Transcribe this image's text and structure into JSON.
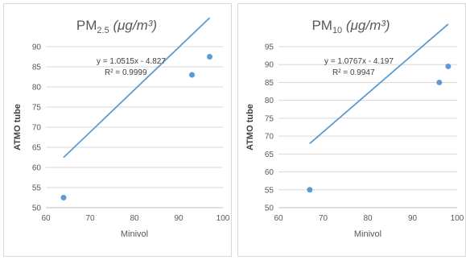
{
  "chart_data": [
    {
      "type": "scatter",
      "title": {
        "main": "PM",
        "sub": "2.5",
        "unit": " (μg/m³)"
      },
      "xlabel": "Minivol",
      "ylabel": "ATMO tube",
      "xlim": [
        60,
        100
      ],
      "ylim": [
        50,
        90
      ],
      "x_ticks": [
        60,
        70,
        80,
        90,
        100
      ],
      "y_ticks": [
        50,
        55,
        60,
        65,
        70,
        75,
        80,
        85,
        90
      ],
      "grid": true,
      "series": [
        {
          "points": [
            {
              "x": 64,
              "y": 52.5
            },
            {
              "x": 93,
              "y": 83
            },
            {
              "x": 97,
              "y": 87.5
            }
          ]
        }
      ],
      "trendline": {
        "type": "linear",
        "slope": 1.0515,
        "intercept": -4.827,
        "x_range": [
          64,
          97
        ]
      },
      "equation": "y = 1.0515x - 4.827",
      "r_squared": "R² = 0.9999",
      "colors": {
        "marker": "#5b9bd5",
        "line": "#5b9bd5",
        "grid": "#d9d9d9",
        "text": "#595959"
      }
    },
    {
      "type": "scatter",
      "title": {
        "main": "PM",
        "sub": "10",
        "unit": " (μg/m³)"
      },
      "xlabel": "Minivol",
      "ylabel": "ATMO tube",
      "xlim": [
        60,
        100
      ],
      "ylim": [
        50,
        95
      ],
      "x_ticks": [
        60,
        70,
        80,
        90,
        100
      ],
      "y_ticks": [
        50,
        55,
        60,
        65,
        70,
        75,
        80,
        85,
        90,
        95
      ],
      "grid": true,
      "series": [
        {
          "points": [
            {
              "x": 67,
              "y": 55
            },
            {
              "x": 96,
              "y": 85
            },
            {
              "x": 98,
              "y": 89.5
            }
          ]
        }
      ],
      "trendline": {
        "type": "linear",
        "slope": 1.0767,
        "intercept": -4.197,
        "x_range": [
          67,
          98
        ]
      },
      "equation": "y = 1.0767x - 4.197",
      "r_squared": "R² = 0.9947",
      "colors": {
        "marker": "#5b9bd5",
        "line": "#5b9bd5",
        "grid": "#d9d9d9",
        "text": "#595959"
      }
    }
  ]
}
